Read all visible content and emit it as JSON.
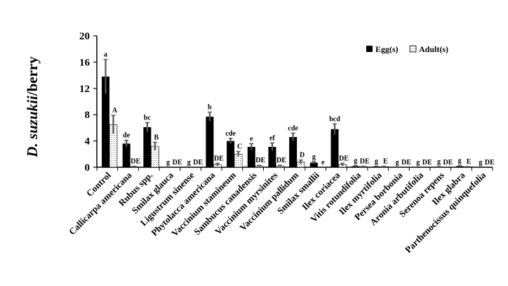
{
  "chart_data": {
    "type": "bar",
    "title": "",
    "xlabel": "",
    "ylabel_italic": "D. suzukii",
    "ylabel_rest": "/berry",
    "ylim": [
      0,
      20
    ],
    "yticks": [
      0,
      4,
      8,
      12,
      16,
      20
    ],
    "grid": false,
    "legend_position": "top-right",
    "categories": [
      "Control",
      "Callicarpa americana",
      "Rubus spp.",
      "Smilax glauca",
      "Ligustrum sinense",
      "Phytolacca americana",
      "Vaccinium stamineum",
      "Sambucus canadensis",
      "Vaccinium myrsinites",
      "Vaccinium pallidum",
      "Smilax smallii",
      "Ilex coriacea",
      "Vitis rotundifolia",
      "Ilex myrtifolia",
      "Persea borbonia",
      "Aronia arbutifolia",
      "Serenoa repens",
      "Ilex glabra",
      "Parthenocissus quinquefolia"
    ],
    "series": [
      {
        "name": "Egg(s)",
        "color": "#000000",
        "values": [
          13.8,
          3.6,
          6.1,
          0,
          0,
          7.7,
          4.0,
          3.1,
          3.1,
          4.6,
          0.7,
          5.8,
          0.15,
          0.1,
          0,
          0,
          0.05,
          0.15,
          0
        ],
        "errors": [
          2.6,
          0.5,
          0.7,
          0,
          0,
          0.7,
          0.4,
          0.5,
          0.6,
          0.6,
          0.15,
          0.8,
          0.1,
          0.05,
          0,
          0,
          0.05,
          0.1,
          0
        ],
        "letters": [
          "a",
          "de",
          "bc",
          "g",
          "g",
          "b",
          "cde",
          "e",
          "ef",
          "cde",
          "g",
          "bcd",
          "g",
          "g",
          "g",
          "g",
          "g",
          "g",
          "g"
        ]
      },
      {
        "name": "Adult(s)",
        "color": "#ffffff",
        "pattern": "dotted",
        "values": [
          6.5,
          0.1,
          3.2,
          0,
          0,
          0.4,
          2.0,
          0.2,
          0.2,
          0.8,
          0,
          0.4,
          0.1,
          0.1,
          0,
          0,
          0,
          0.05,
          0
        ],
        "errors": [
          1.4,
          0.05,
          0.6,
          0,
          0,
          0.2,
          0.4,
          0.1,
          0.1,
          0.3,
          0,
          0.2,
          0.05,
          0.05,
          0,
          0,
          0,
          0.05,
          0
        ],
        "letters": [
          "A",
          "DE",
          "B",
          "DE",
          "DE",
          "DE",
          "C",
          "DE",
          "DE",
          "D",
          "e",
          "DE",
          "DE",
          "E",
          "DE",
          "DE",
          "DE",
          "E",
          "DE"
        ]
      }
    ]
  }
}
